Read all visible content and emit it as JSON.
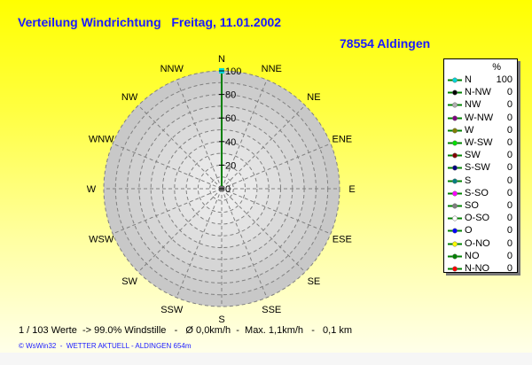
{
  "header": {
    "title": "Verteilung Windrichtung   Freitag, 11.01.2002",
    "location": "78554 Aldingen"
  },
  "chart_data": {
    "type": "radar",
    "directions": [
      "N",
      "NNE",
      "NE",
      "ENE",
      "E",
      "ESE",
      "SE",
      "SSE",
      "S",
      "SSW",
      "SW",
      "WSW",
      "W",
      "WNW",
      "NW",
      "NNW"
    ],
    "radial_ticks": [
      "0",
      "20",
      "40",
      "60",
      "80",
      "100"
    ],
    "rlim": [
      0,
      100
    ],
    "grid": true,
    "series": [
      {
        "values": [
          100,
          0,
          0,
          0,
          0,
          0,
          0,
          0,
          0,
          0,
          0,
          0,
          0,
          0,
          0,
          0
        ],
        "color": "#008000"
      }
    ]
  },
  "legend": {
    "unit": "%",
    "placement": "right",
    "items": [
      {
        "label": "N",
        "value": "100",
        "color": "#00d8d8"
      },
      {
        "label": "N-NW",
        "value": "0",
        "color": "#000000"
      },
      {
        "label": "NW",
        "value": "0",
        "color": "#b0b0b0"
      },
      {
        "label": "W-NW",
        "value": "0",
        "color": "#800080"
      },
      {
        "label": "W",
        "value": "0",
        "color": "#808000"
      },
      {
        "label": "W-SW",
        "value": "0",
        "color": "#00e000"
      },
      {
        "label": "SW",
        "value": "0",
        "color": "#800000"
      },
      {
        "label": "S-SW",
        "value": "0",
        "color": "#000080"
      },
      {
        "label": "S",
        "value": "0",
        "color": "#008080"
      },
      {
        "label": "S-SO",
        "value": "0",
        "color": "#ff00ff"
      },
      {
        "label": "SO",
        "value": "0",
        "color": "#808080"
      },
      {
        "label": "O-SO",
        "value": "0",
        "color": "#ffffff"
      },
      {
        "label": "O",
        "value": "0",
        "color": "#0000ff"
      },
      {
        "label": "O-NO",
        "value": "0",
        "color": "#ffff00"
      },
      {
        "label": "NO",
        "value": "0",
        "color": "#008000"
      },
      {
        "label": "N-NO",
        "value": "0",
        "color": "#ff0000"
      }
    ]
  },
  "footer": {
    "stats": "1 / 103 Werte  -> 99.0% Windstille   -   Ø 0,0km/h  -  Max. 1,1km/h   -   0,1 km",
    "credit": "© WsWin32  -  WETTER AKTUELL - ALDINGEN 654m"
  }
}
